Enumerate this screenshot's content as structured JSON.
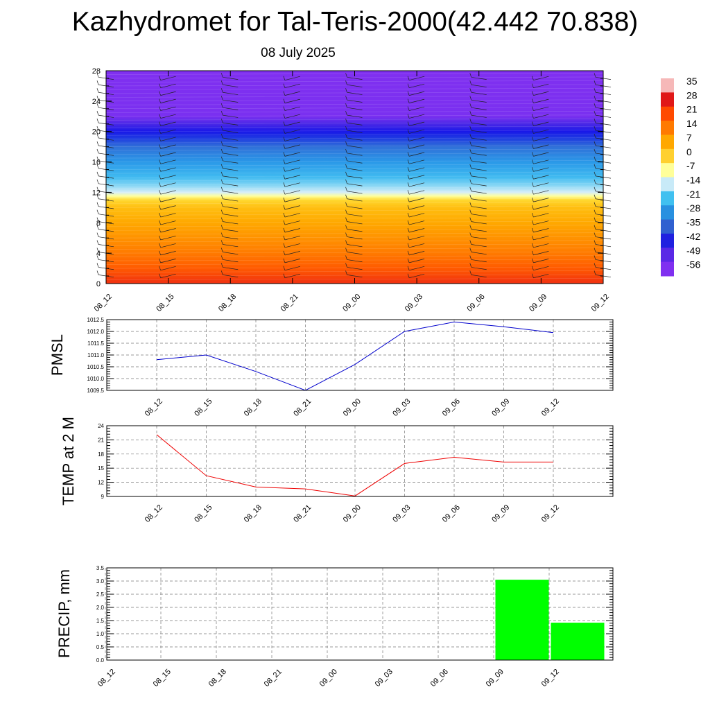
{
  "header": {
    "title": "Kazhydromet for Tal-Teris-2000(42.442 70.838)",
    "subtitle": "08 July 2025"
  },
  "chart_data": [
    {
      "type": "heatmap",
      "x_ticks": [
        "08_12",
        "08_15",
        "08_18",
        "08_21",
        "09_00",
        "09_03",
        "09_06",
        "09_09",
        "09_12"
      ],
      "y_ticks": [
        0,
        4,
        8,
        12,
        16,
        20,
        24,
        28
      ],
      "ylim": [
        0,
        28
      ],
      "colorbar": {
        "labels": [
          35,
          28,
          21,
          14,
          7,
          0,
          -7,
          -14,
          -21,
          -28,
          -35,
          -42,
          -49,
          -56
        ],
        "colors": [
          "#f6b8b8",
          "#e01818",
          "#ff4a00",
          "#ff7a00",
          "#ffa800",
          "#ffd030",
          "#ffff9a",
          "#c8eaf8",
          "#40c0f0",
          "#2890e0",
          "#3060d0",
          "#2020e0",
          "#5a28e6",
          "#8030f0"
        ]
      },
      "field": {
        "levels": [
          0,
          2,
          4,
          6,
          8,
          10,
          11,
          11.5,
          12,
          13,
          14,
          16,
          18,
          19,
          20,
          21,
          22,
          28
        ],
        "colors": [
          "#f03010",
          "#ff5a00",
          "#ff7a00",
          "#ff9200",
          "#ffa800",
          "#ffbe10",
          "#ffd830",
          "#ffff9a",
          "#d6eef8",
          "#80d4f4",
          "#40baf0",
          "#2a98e8",
          "#3070d8",
          "#2040e0",
          "#1818e8",
          "#4a28e6",
          "#7a30f0",
          "#8030f0"
        ]
      },
      "wind_barbs": true
    },
    {
      "type": "line",
      "ylabel": "PMSL",
      "x": [
        "08_12",
        "08_15",
        "08_18",
        "08_21",
        "09_00",
        "09_03",
        "09_06",
        "09_09",
        "09_12"
      ],
      "series": [
        {
          "color": "#0000cc",
          "values": [
            1010.8,
            1011.0,
            1010.3,
            1009.5,
            1010.6,
            1012.0,
            1012.4,
            1012.2,
            1011.95
          ]
        }
      ],
      "y_ticks": [
        1009.5,
        1010.0,
        1010.5,
        1011.0,
        1011.5,
        1012.0,
        1012.5
      ],
      "y_tick_labels": [
        "1009.5",
        "1010.0",
        "1010.5",
        "1011.0",
        "1011.5",
        "1012.0",
        "1012.5"
      ],
      "ylim": [
        1009.5,
        1012.5
      ],
      "grid": true
    },
    {
      "type": "line",
      "ylabel": "TEMP at 2 M",
      "x": [
        "08_12",
        "08_15",
        "08_18",
        "08_21",
        "09_00",
        "09_03",
        "09_06",
        "09_09",
        "09_12"
      ],
      "series": [
        {
          "color": "#ee0000",
          "values": [
            22.1,
            13.4,
            11.0,
            10.6,
            9.1,
            16.0,
            17.3,
            16.3,
            16.3
          ]
        }
      ],
      "y_ticks": [
        9,
        12,
        15,
        18,
        21,
        24
      ],
      "y_tick_labels": [
        "9",
        "12",
        "15",
        "18",
        "21",
        "24"
      ],
      "ylim": [
        9,
        24
      ],
      "grid": true
    },
    {
      "type": "bar",
      "ylabel": "PRECIP, mm",
      "categories": [
        "08_12",
        "08_15",
        "08_18",
        "08_21",
        "09_00",
        "09_03",
        "09_06",
        "09_09",
        "09_12"
      ],
      "values": [
        0,
        0,
        0,
        0,
        0,
        0,
        0,
        3.05,
        1.42
      ],
      "color": "#00ff00",
      "y_ticks": [
        0,
        0.5,
        1,
        1.5,
        2,
        2.5,
        3,
        3.5
      ],
      "y_tick_labels": [
        "0.0",
        "0.5",
        "1.0",
        "1.5",
        "2.0",
        "2.5",
        "3.0",
        "3.5"
      ],
      "ylim": [
        0,
        3.5
      ],
      "grid": true
    }
  ]
}
